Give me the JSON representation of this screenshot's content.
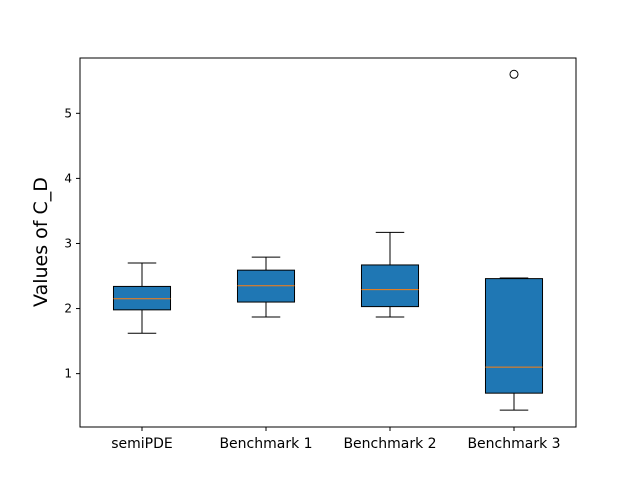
{
  "chart_data": {
    "type": "box",
    "title": "",
    "xlabel": "",
    "ylabel": "Values of C_D",
    "ylim": [
      0.18,
      5.85
    ],
    "yticks": [
      1,
      2,
      3,
      4,
      5
    ],
    "ytick_labels": [
      "1",
      "2",
      "3",
      "4",
      "5"
    ],
    "grid": false,
    "categories": [
      "semiPDE",
      "Benchmark 1",
      "Benchmark 2",
      "Benchmark 3"
    ],
    "boxes": [
      {
        "name": "semiPDE",
        "whisker_low": 1.62,
        "q1": 1.98,
        "median": 2.15,
        "q3": 2.34,
        "whisker_high": 2.7,
        "outliers": []
      },
      {
        "name": "Benchmark 1",
        "whisker_low": 1.87,
        "q1": 2.1,
        "median": 2.35,
        "q3": 2.59,
        "whisker_high": 2.79,
        "outliers": []
      },
      {
        "name": "Benchmark 2",
        "whisker_low": 1.87,
        "q1": 2.03,
        "median": 2.29,
        "q3": 2.67,
        "whisker_high": 3.17,
        "outliers": []
      },
      {
        "name": "Benchmark 3",
        "whisker_low": 0.44,
        "q1": 0.7,
        "median": 1.1,
        "q3": 2.46,
        "whisker_high": 2.47,
        "outliers": [
          5.6
        ]
      }
    ],
    "colors": {
      "box_fill": "#1f77b4",
      "box_edge": "#000000",
      "median": "#ff7f0e",
      "outlier_edge": "#000000"
    }
  }
}
